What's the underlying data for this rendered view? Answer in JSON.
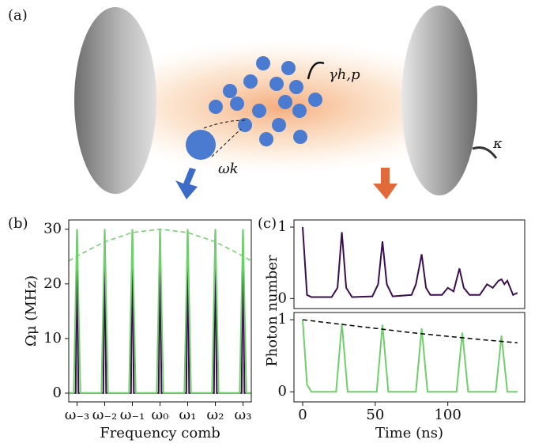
{
  "panel_a": {
    "label": "(a)",
    "gamma": "γh,p",
    "kappa": "κ",
    "omega": "ωk"
  },
  "chart_data": [
    {
      "type": "line",
      "panel_label": "(b)",
      "xlabel": "Frequency comb",
      "ylabel": "Ωμ (MHz)",
      "xlim": [
        -3.3,
        3.3
      ],
      "ylim": [
        -1.6,
        31.7
      ],
      "xticks": [
        {
          "value": -3,
          "label": "ω₋₃"
        },
        {
          "value": -2,
          "label": "ω₋₂"
        },
        {
          "value": -1,
          "label": "ω₋₁"
        },
        {
          "value": 0,
          "label": "ω₀"
        },
        {
          "value": 1,
          "label": "ω₁"
        },
        {
          "value": 2,
          "label": "ω₂"
        },
        {
          "value": 3,
          "label": "ω₃"
        }
      ],
      "yticks": [
        0,
        10,
        20,
        30
      ],
      "series": [
        {
          "color": "#3b0f4f",
          "style": "solid",
          "x": [
            -3.3,
            -3.05,
            -3,
            -2.95,
            -2.05,
            -2,
            -1.95,
            -1.05,
            -1,
            -0.95,
            -0.05,
            0,
            0.05,
            0.95,
            1,
            1.05,
            1.95,
            2,
            2.05,
            2.95,
            3,
            3.05,
            3.3
          ],
          "values": [
            0,
            0,
            30,
            0,
            0,
            30,
            0,
            0,
            30,
            0,
            0,
            30,
            0,
            0,
            30,
            0,
            0,
            30,
            0,
            0,
            30,
            0,
            0
          ]
        },
        {
          "color": "#6fcf6a",
          "style": "solid",
          "x": [
            -3.3,
            -3.12,
            -3,
            -2.88,
            -2.12,
            -2,
            -1.88,
            -1.12,
            -1,
            -0.88,
            -0.12,
            0,
            0.12,
            0.88,
            1,
            1.12,
            1.88,
            2,
            2.12,
            2.88,
            3,
            3.12,
            3.3
          ],
          "values": [
            0,
            0,
            30,
            0,
            0,
            30,
            0,
            0,
            30,
            0,
            0,
            30,
            0,
            0,
            30,
            0,
            0,
            30,
            0,
            0,
            30,
            0,
            0
          ]
        },
        {
          "color": "#6fcf6a",
          "style": "dashed",
          "x": [
            -3.3,
            -3,
            -2,
            -1,
            0,
            1,
            2,
            3,
            3.3
          ],
          "values": [
            24.2,
            25.1,
            27.7,
            29.4,
            30,
            29.4,
            27.7,
            25.1,
            24.2
          ]
        }
      ]
    },
    {
      "type": "line",
      "panel_label": "(c)",
      "ylabel": "Photon number",
      "xlim": [
        -6,
        153
      ],
      "ylim": [
        -0.14,
        1.1
      ],
      "yticks": [
        0,
        1
      ],
      "series": [
        {
          "color": "#3b0f4f",
          "style": "solid",
          "x": [
            0,
            3,
            6,
            20,
            24,
            27,
            30,
            34,
            48,
            52,
            55,
            58,
            62,
            75,
            78,
            82,
            85,
            88,
            96,
            100,
            104,
            108,
            111,
            115,
            122,
            127,
            131,
            135,
            137,
            139,
            141,
            145,
            148
          ],
          "values": [
            1,
            0.05,
            0.02,
            0.02,
            0.15,
            0.93,
            0.15,
            0.02,
            0.03,
            0.2,
            0.8,
            0.2,
            0.03,
            0.05,
            0.2,
            0.62,
            0.15,
            0.05,
            0.05,
            0.15,
            0.1,
            0.42,
            0.15,
            0.05,
            0.05,
            0.2,
            0.15,
            0.25,
            0.27,
            0.2,
            0.25,
            0.05,
            0.08
          ]
        }
      ]
    },
    {
      "type": "line",
      "xlabel": "Time (ns)",
      "xlim": [
        -6,
        153
      ],
      "ylim": [
        -0.14,
        1.1
      ],
      "xticks": [
        0,
        50,
        100
      ],
      "yticks": [
        0,
        1
      ],
      "series": [
        {
          "color": "#6fcf6a",
          "style": "solid",
          "x": [
            0,
            3,
            6,
            23,
            27,
            31,
            51,
            55,
            59,
            78,
            82,
            86,
            106,
            110,
            114,
            133,
            137,
            141,
            148
          ],
          "values": [
            1,
            0.1,
            0,
            0,
            0.95,
            0,
            0,
            0.93,
            0,
            0,
            0.88,
            0,
            0,
            0.82,
            0,
            0,
            0.78,
            0,
            0
          ]
        },
        {
          "color": "#000000",
          "style": "dashed",
          "x": [
            0,
            25,
            50,
            75,
            100,
            125,
            148
          ],
          "values": [
            1,
            0.94,
            0.88,
            0.82,
            0.77,
            0.72,
            0.68
          ]
        }
      ]
    }
  ]
}
